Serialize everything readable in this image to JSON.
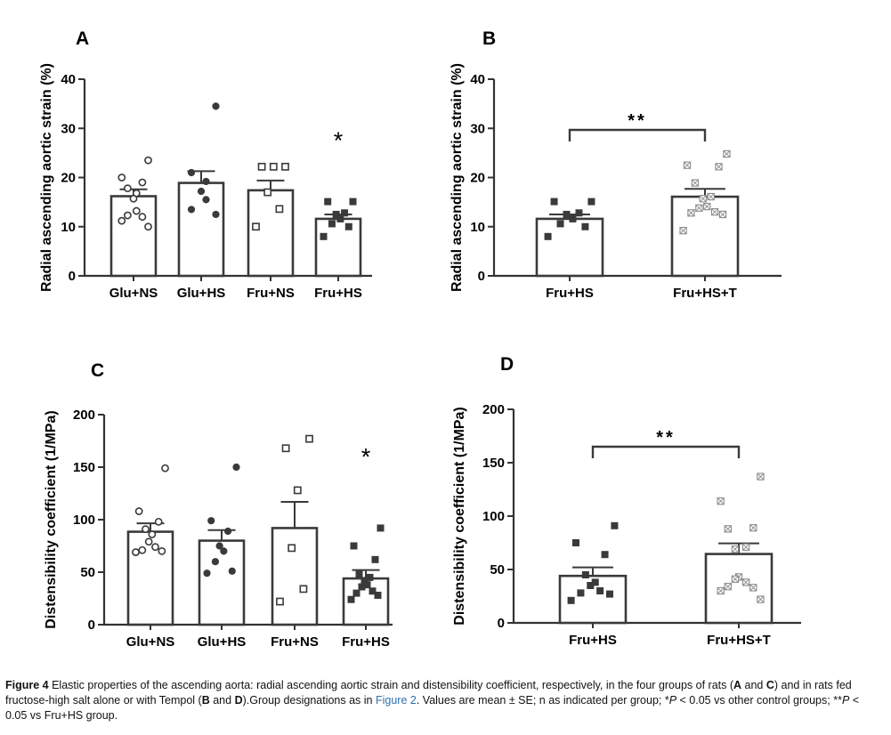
{
  "chart_data": [
    {
      "id": "A",
      "type": "bar",
      "panel_label": "A",
      "ylabel": "Radial ascending aortic strain (%)",
      "ylim": [
        0,
        40
      ],
      "yticks": [
        0,
        10,
        20,
        30,
        40
      ],
      "categories": [
        "Glu+NS",
        "Glu+HS",
        "Fru+NS",
        "Fru+HS"
      ],
      "series": [
        {
          "name": "mean",
          "values": [
            16.2,
            18.9,
            17.4,
            11.6
          ],
          "se": [
            1.4,
            2.4,
            2.0,
            0.9
          ]
        }
      ],
      "points": [
        [
          23.5,
          20.0,
          19.0,
          17.8,
          16.8,
          15.7,
          13.2,
          12.3,
          12.0,
          11.2,
          10.0
        ],
        [
          34.5,
          21.0,
          19.2,
          17.2,
          15.5,
          13.5,
          12.5
        ],
        [
          22.2,
          22.2,
          22.2,
          17.0,
          13.6,
          10.0
        ],
        [
          15.1,
          15.1,
          12.8,
          12.5,
          11.6,
          10.6,
          10.0,
          8.0
        ]
      ],
      "markers": [
        "circle-open",
        "circle-filled",
        "square-open",
        "square-filled"
      ],
      "annotations": [
        {
          "text": "*",
          "category": "Fru+HS",
          "y": 28.4
        }
      ]
    },
    {
      "id": "B",
      "type": "bar",
      "panel_label": "B",
      "ylabel": "Radial ascending aortic strain (%)",
      "ylim": [
        0,
        40
      ],
      "yticks": [
        0,
        10,
        20,
        30,
        40
      ],
      "categories": [
        "Fru+HS",
        "Fru+HS+T"
      ],
      "series": [
        {
          "name": "mean",
          "values": [
            11.6,
            16.1
          ],
          "se": [
            0.9,
            1.6
          ]
        }
      ],
      "points": [
        [
          15.1,
          15.1,
          12.8,
          12.5,
          11.6,
          10.6,
          10.0,
          8.0
        ],
        [
          24.8,
          22.5,
          22.2,
          18.9,
          16.1,
          15.7,
          14.1,
          13.8,
          13.0,
          12.8,
          12.5,
          9.2
        ]
      ],
      "markers": [
        "square-filled",
        "square-crossed"
      ],
      "annotations": [
        {
          "text": "**",
          "between": [
            "Fru+HS",
            "Fru+HS+T"
          ],
          "y": 29.6
        }
      ]
    },
    {
      "id": "C",
      "type": "bar",
      "panel_label": "C",
      "ylabel": "Distensibility coefficient (1/MPa)",
      "ylim": [
        0,
        200
      ],
      "yticks": [
        0,
        50,
        100,
        150,
        200
      ],
      "categories": [
        "Glu+NS",
        "Glu+HS",
        "Fru+NS",
        "Fru+HS"
      ],
      "series": [
        {
          "name": "mean",
          "values": [
            88.5,
            80.0,
            92.0,
            44.0
          ],
          "se": [
            8.0,
            10.0,
            25.0,
            8.0
          ]
        }
      ],
      "points": [
        [
          149,
          108,
          98,
          91,
          86,
          79,
          74,
          71,
          70,
          69
        ],
        [
          150,
          99,
          89,
          75,
          70,
          60,
          51,
          49
        ],
        [
          177,
          168,
          128,
          73,
          34,
          22
        ],
        [
          92,
          75,
          62,
          48,
          45,
          42,
          38,
          36,
          32,
          30,
          28,
          24
        ]
      ],
      "markers": [
        "circle-open",
        "circle-filled",
        "square-open",
        "square-filled"
      ],
      "annotations": [
        {
          "text": "*",
          "category": "Fru+HS",
          "y": 164
        }
      ]
    },
    {
      "id": "D",
      "type": "bar",
      "panel_label": "D",
      "ylabel": "Distensibility coefficient (1/MPa)",
      "ylim": [
        0,
        200
      ],
      "yticks": [
        0,
        50,
        100,
        150,
        200
      ],
      "categories": [
        "Fru+HS",
        "Fru+HS+T"
      ],
      "series": [
        {
          "name": "mean",
          "values": [
            44.0,
            64.5
          ],
          "se": [
            8.0,
            10.0
          ]
        }
      ],
      "points": [
        [
          91,
          75,
          64,
          45,
          38,
          35,
          30,
          28,
          27,
          21
        ],
        [
          137,
          114,
          89,
          88,
          71,
          69,
          43,
          41,
          38,
          34,
          33,
          30,
          22
        ]
      ],
      "markers": [
        "square-filled",
        "square-crossed"
      ],
      "annotations": [
        {
          "text": "**",
          "between": [
            "Fru+HS",
            "Fru+HS+T"
          ],
          "y": 161
        }
      ]
    }
  ],
  "caption": {
    "label": "Figure 4",
    "part1": " Elastic properties of the ascending aorta: radial ascending aortic strain and distensibility coefficient, respectively, in the four groups of rats (",
    "a": "A",
    "and1": " and ",
    "c": "C",
    "part2": ") and in rats fed fructose-high salt alone or with Tempol (",
    "b": "B",
    "and2": " and ",
    "d": "D",
    "part3": ").Group designations as in ",
    "ref": "Figure 2",
    "part4": ". Values are mean ± SE; n as indicated per group; *",
    "p1": "P",
    "part5": " < 0.05 vs other control groups; **",
    "p2": "P",
    "part6": " < 0.05 vs Fru+HS group."
  },
  "colors": {
    "bar_stroke": "#3a3a3a",
    "axis": "#333333",
    "marker": "#3a3a3a",
    "marker_light": "#8a8a8a",
    "link": "#2f6fb3"
  }
}
